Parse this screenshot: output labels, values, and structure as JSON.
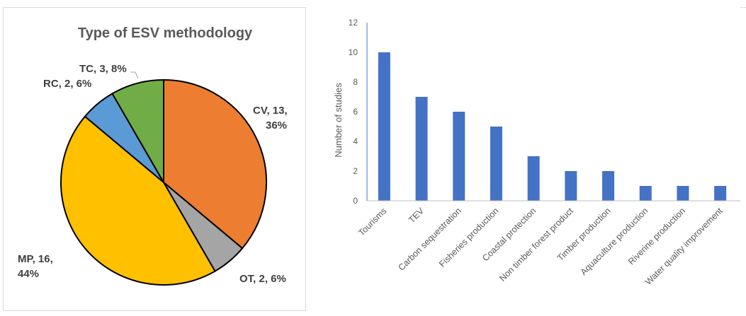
{
  "chart_data": [
    {
      "type": "pie",
      "title": "Type of ESV methodology",
      "slices": [
        {
          "name": "CV",
          "value": 13,
          "percent": "36%",
          "label": "CV, 13, 36%",
          "color": "#ED7D31"
        },
        {
          "name": "OT",
          "value": 2,
          "percent": "6%",
          "label": "OT, 2, 6%",
          "color": "#A5A5A5"
        },
        {
          "name": "MP",
          "value": 16,
          "percent": "44%",
          "label": "MP, 16, 44%",
          "color": "#FFC000"
        },
        {
          "name": "RC",
          "value": 2,
          "percent": "6%",
          "label": "RC, 2, 6%",
          "color": "#5B9BD5"
        },
        {
          "name": "TC",
          "value": 3,
          "percent": "8%",
          "label": "TC, 3, 8%",
          "color": "#70AD47"
        }
      ]
    },
    {
      "type": "bar",
      "title": "",
      "xlabel": "",
      "ylabel": "Number of studies",
      "ylim": [
        0,
        12
      ],
      "yticks": [
        0,
        2,
        4,
        6,
        8,
        10,
        12
      ],
      "categories": [
        "Tourisms",
        "TEV",
        "Carbon sequestration",
        "Fisheries production",
        "Coastal protection",
        "Non timber forest product",
        "Timber production",
        "Aquaculture production",
        "Riverine production",
        "Water quality improvement"
      ],
      "values": [
        10,
        7,
        6,
        5,
        3,
        2,
        2,
        1,
        1,
        1
      ],
      "bar_color": "#4472C4",
      "grid": false
    }
  ]
}
